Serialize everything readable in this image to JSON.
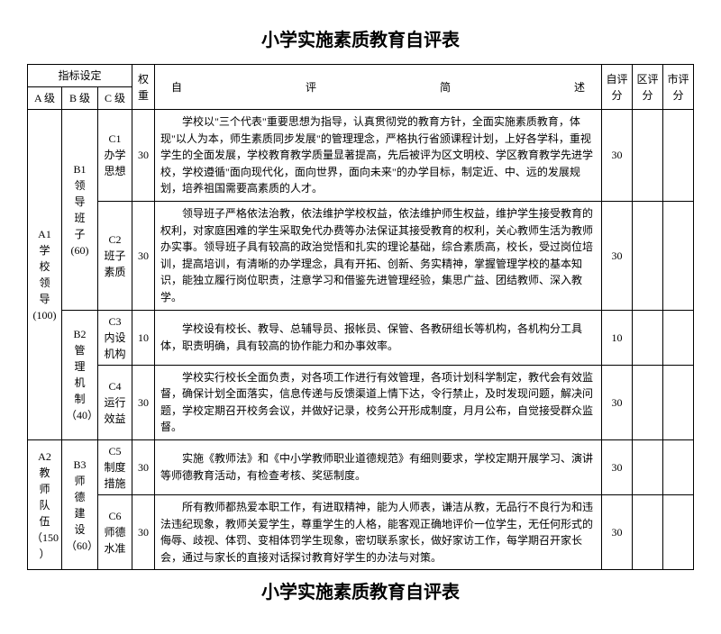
{
  "title": "小学实施素质教育自评表",
  "header": {
    "indicator": "指标设定",
    "levelA": "A 级",
    "levelB": "B 级",
    "levelC": "C 级",
    "weight": "权重",
    "desc": "自　　　评　　　简　　　述",
    "selfScore": "自评分",
    "districtScore": "区评分",
    "cityScore": "市评分"
  },
  "rows": [
    {
      "a": "A1\n学\n校\n领\n导\n(100)",
      "aRowSpan": 4,
      "b": "B1\n领\n导\n班\n子\n(60)",
      "bRowSpan": 2,
      "c": "C1\n办学\n思想",
      "weight": "30",
      "desc": "学校以\"三个代表\"重要思想为指导，认真贯彻党的教育方针，全面实施素质教育，体现\"以人为本，师生素质同步发展\"的管理理念，严格执行省颁课程计划，上好各学科，重视学生的全面发展，学校教育教学质量显著提高，先后被评为区文明校、学区教育教学先进学校，学校遵循\"面向现代化，面向世界，面向未来\"的办学目标，制定近、中、远的发展规划，培养祖国需要高素质的人才。",
      "selfScore": "30"
    },
    {
      "c": "C2\n班子\n素质",
      "weight": "30",
      "desc": "领导班子严格依法治教，依法维护学校权益，依法维护师生权益，维护学生接受教育的权利，对家庭困难的学生采取免代办费等办法保证其接受教育的权利，关心教师生活为教师办实事。领导班子具有较高的政治觉悟和扎实的理论基础，综合素质高，校长，受过岗位培训，提高培训，有清晰的办学理念，具有开拓、创新、务实精神，掌握管理学校的基本知识，能独立履行岗位职责，注意学习和借鉴先进管理经验，集思广益、团结教师、深入教学。",
      "selfScore": "30"
    },
    {
      "b": "B2\n管\n理\n机\n制\n（40）",
      "bRowSpan": 2,
      "c": "C3\n内设\n机构",
      "weight": "10",
      "desc": "学校设有校长、教导、总辅导员、报帐员、保管、各教研组长等机构，各机构分工具体，职责明确，具有较高的协作能力和办事效率。",
      "selfScore": "10"
    },
    {
      "c": "C4\n运行\n效益",
      "weight": "30",
      "desc": "学校实行校长全面负责，对各项工作进行有效管理，各项计划科学制定，教代会有效监督，确保计划全面落实，信息传递与反馈渠道上情下达，令行禁止，及时发现问题，解决问题，学校定期召开校务会议，并做好记录，校务公开形成制度，月月公布，自觉接受群众监督。",
      "selfScore": "30"
    },
    {
      "a": "A2\n教\n师\n队\n伍\n（150\n）",
      "aRowSpan": 2,
      "b": "B3\n师\n德\n建\n设\n（60）",
      "bRowSpan": 2,
      "c": "C5\n制度\n措施",
      "weight": "30",
      "desc": "实施《教师法》和《中小学教师职业道德规范》有细则要求，学校定期开展学习、演讲等师德教育活动，有检查考核、奖惩制度。",
      "selfScore": "30"
    },
    {
      "c": "C6\n师德\n水准",
      "weight": "30",
      "desc": "所有教师都热爱本职工作，有进取精神，能为人师表，谦洁从教，无品行不良行为和违法违纪现象，教师关爱学生，尊重学生的人格，能客观正确地评价一位学生，无任何形式的侮辱、歧视、体罚、变相体罚学生现象，密切联系家长，做好家访工作，每学期召开家长会，通过与家长的直接对话探讨教育好学生的办法与对策。",
      "selfScore": "30"
    }
  ]
}
